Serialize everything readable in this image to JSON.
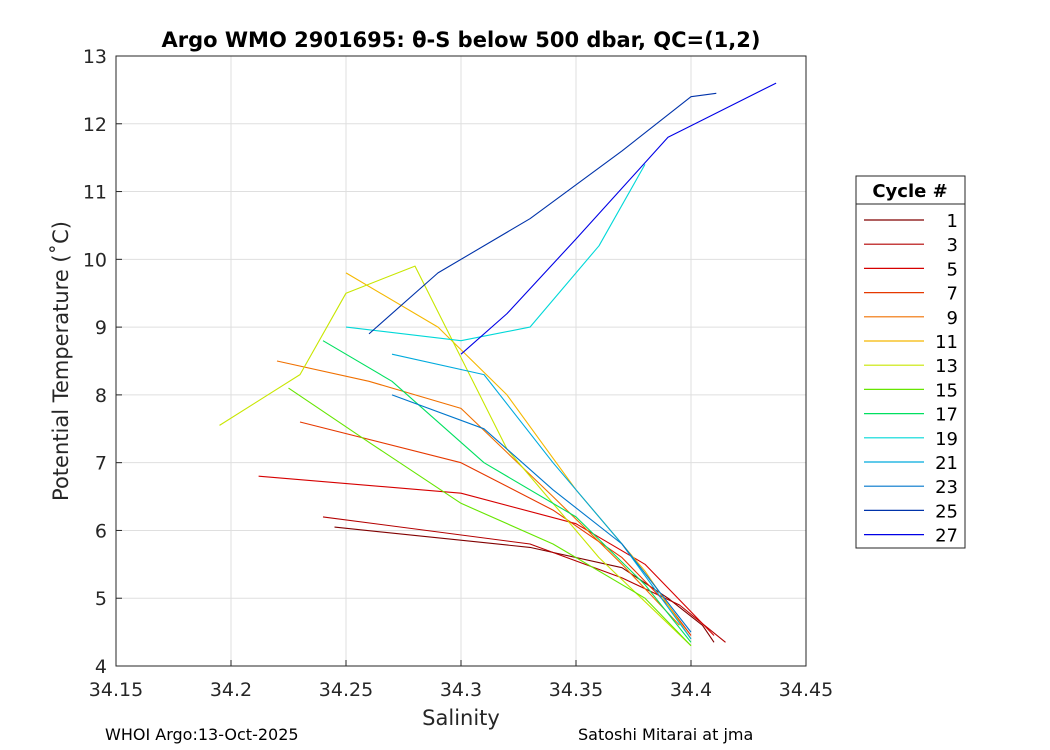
{
  "chart_data": {
    "type": "line",
    "title": "Argo WMO 2901695: θ-S below 500 dbar,  QC=(1,2)",
    "xlabel": "Salinity",
    "ylabel": "Potential Temperature (˚C)",
    "xlim": [
      34.15,
      34.45
    ],
    "ylim": [
      4,
      13
    ],
    "xticks": [
      "34.15",
      "34.2",
      "34.25",
      "34.3",
      "34.35",
      "34.4",
      "34.45"
    ],
    "yticks": [
      "4",
      "5",
      "6",
      "7",
      "8",
      "9",
      "10",
      "11",
      "12",
      "13"
    ],
    "grid": true,
    "legend_title": "Cycle #",
    "legend_position": "outside-right",
    "series": [
      {
        "name": "1",
        "color": "#800000",
        "points": [
          [
            34.245,
            6.05
          ],
          [
            34.33,
            5.75
          ],
          [
            34.37,
            5.45
          ],
          [
            34.39,
            5.0
          ],
          [
            34.405,
            4.6
          ],
          [
            34.41,
            4.35
          ]
        ]
      },
      {
        "name": "3",
        "color": "#b30000",
        "points": [
          [
            34.24,
            6.2
          ],
          [
            34.33,
            5.8
          ],
          [
            34.37,
            5.3
          ],
          [
            34.395,
            4.9
          ],
          [
            34.415,
            4.35
          ]
        ]
      },
      {
        "name": "5",
        "color": "#d60000",
        "points": [
          [
            34.212,
            6.8
          ],
          [
            34.3,
            6.55
          ],
          [
            34.35,
            6.1
          ],
          [
            34.38,
            5.5
          ],
          [
            34.4,
            4.8
          ],
          [
            34.41,
            4.45
          ]
        ]
      },
      {
        "name": "7",
        "color": "#e63900",
        "points": [
          [
            34.23,
            7.6
          ],
          [
            34.3,
            7.0
          ],
          [
            34.34,
            6.3
          ],
          [
            34.37,
            5.6
          ],
          [
            34.39,
            4.9
          ],
          [
            34.4,
            4.45
          ]
        ]
      },
      {
        "name": "9",
        "color": "#f07000",
        "points": [
          [
            34.22,
            8.5
          ],
          [
            34.26,
            8.2
          ],
          [
            34.3,
            7.8
          ],
          [
            34.34,
            6.5
          ],
          [
            34.37,
            5.5
          ],
          [
            34.395,
            4.6
          ]
        ]
      },
      {
        "name": "11",
        "color": "#f5b800",
        "points": [
          [
            34.25,
            9.8
          ],
          [
            34.29,
            9.0
          ],
          [
            34.32,
            8.0
          ],
          [
            34.35,
            6.6
          ],
          [
            34.38,
            5.4
          ],
          [
            34.4,
            4.4
          ]
        ]
      },
      {
        "name": "13",
        "color": "#c8e600",
        "points": [
          [
            34.195,
            7.55
          ],
          [
            34.23,
            8.3
          ],
          [
            34.25,
            9.5
          ],
          [
            34.28,
            9.9
          ],
          [
            34.32,
            7.2
          ],
          [
            34.36,
            5.6
          ],
          [
            34.4,
            4.3
          ]
        ]
      },
      {
        "name": "15",
        "color": "#66e600",
        "points": [
          [
            34.225,
            8.1
          ],
          [
            34.26,
            7.3
          ],
          [
            34.3,
            6.4
          ],
          [
            34.34,
            5.8
          ],
          [
            34.38,
            5.0
          ],
          [
            34.4,
            4.3
          ]
        ]
      },
      {
        "name": "17",
        "color": "#00e060",
        "points": [
          [
            34.24,
            8.8
          ],
          [
            34.27,
            8.2
          ],
          [
            34.31,
            7.0
          ],
          [
            34.35,
            6.2
          ],
          [
            34.38,
            5.2
          ],
          [
            34.4,
            4.35
          ]
        ]
      },
      {
        "name": "19",
        "color": "#00d8d8",
        "points": [
          [
            34.25,
            9.0
          ],
          [
            34.3,
            8.8
          ],
          [
            34.33,
            9.0
          ],
          [
            34.36,
            10.2
          ],
          [
            34.38,
            11.4
          ]
        ]
      },
      {
        "name": "21",
        "color": "#00aadd",
        "points": [
          [
            34.27,
            8.6
          ],
          [
            34.31,
            8.3
          ],
          [
            34.34,
            7.0
          ],
          [
            34.37,
            5.8
          ],
          [
            34.4,
            4.4
          ]
        ]
      },
      {
        "name": "23",
        "color": "#0077cc",
        "points": [
          [
            34.27,
            8.0
          ],
          [
            34.31,
            7.5
          ],
          [
            34.34,
            6.6
          ],
          [
            34.37,
            5.8
          ],
          [
            34.4,
            4.5
          ]
        ]
      },
      {
        "name": "25",
        "color": "#0033aa",
        "points": [
          [
            34.26,
            8.9
          ],
          [
            34.29,
            9.8
          ],
          [
            34.33,
            10.6
          ],
          [
            34.37,
            11.6
          ],
          [
            34.4,
            12.4
          ],
          [
            34.411,
            12.45
          ]
        ]
      },
      {
        "name": "27",
        "color": "#0000e6",
        "points": [
          [
            34.3,
            8.6
          ],
          [
            34.32,
            9.2
          ],
          [
            34.35,
            10.3
          ],
          [
            34.39,
            11.8
          ],
          [
            34.437,
            12.6
          ]
        ]
      }
    ]
  },
  "footer": {
    "left": "WHOI Argo:13-Oct-2025",
    "right": "Satoshi Mitarai at jma"
  }
}
